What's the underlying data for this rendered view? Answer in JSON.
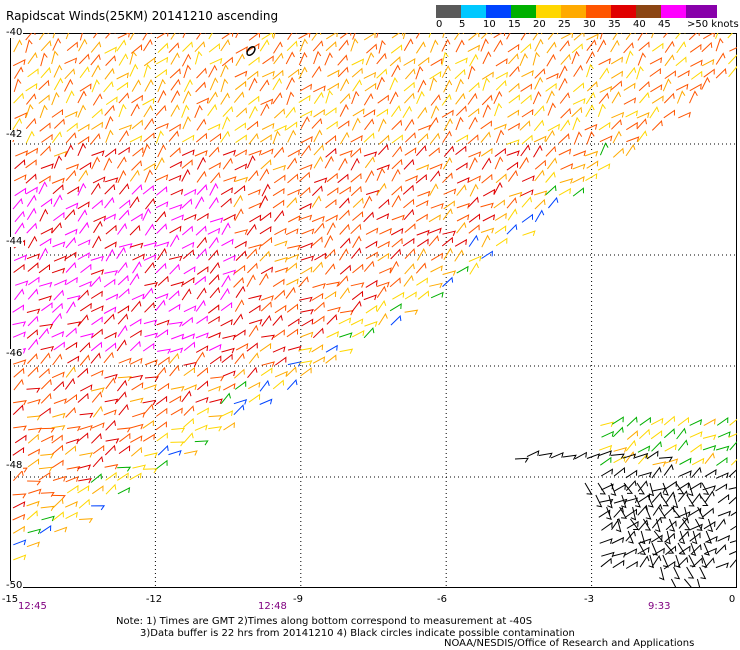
{
  "title": "Rapidscat Winds(25KM) 20141210 ascending",
  "legend": {
    "labels": [
      "0",
      "5",
      "10",
      "15",
      "20",
      "25",
      "30",
      "35",
      "40",
      "45",
      ">50 knots"
    ],
    "colors": [
      "#5a5a5a",
      "#00c8ff",
      "#0044ff",
      "#00b000",
      "#ffd700",
      "#ffaa00",
      "#ff5500",
      "#e00000",
      "#8b4513",
      "#ff00ff",
      "#8800aa"
    ]
  },
  "axes": {
    "y_labels": [
      "-40",
      "-42",
      "-44",
      "-46",
      "-48",
      "-50"
    ],
    "x_labels": [
      "-15",
      "-12",
      "-9",
      "-6",
      "-3",
      "0"
    ],
    "time_labels": [
      "12:45",
      "12:48",
      "9:33"
    ]
  },
  "note": {
    "line1": "Note: 1) Times are GMT 2)Times along bottom correspond to measurement at -40S",
    "line2": "3)Data buffer is 22 hrs from 20141210 4) Black circles indicate possible contamination"
  },
  "credit": "NOAA/NESDIS/Office of Research and Applications",
  "map": {
    "lon_range": [
      -15,
      0
    ],
    "lat_range": [
      -50,
      -40
    ]
  }
}
